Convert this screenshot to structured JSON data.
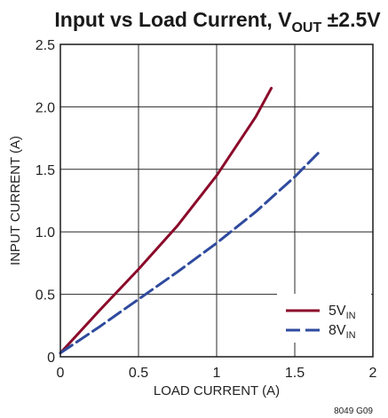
{
  "chart_data": {
    "type": "line",
    "title": {
      "main": "Input vs Load Current, V",
      "sub": "OUT",
      "tail": " ±2.5V"
    },
    "xlabel": "LOAD CURRENT (A)",
    "ylabel": "INPUT CURRENT (A)",
    "xlim": [
      0,
      2
    ],
    "ylim": [
      0,
      2.5
    ],
    "x_ticks": [
      "0",
      "0.5",
      "1",
      "1.5",
      "2"
    ],
    "y_ticks": [
      "0",
      "0.5",
      "1.0",
      "1.5",
      "2.0",
      "2.5"
    ],
    "grid": true,
    "legend_position": "bottom-right",
    "series": [
      {
        "name": "5V",
        "name_sub": "IN",
        "color": "#8b0a2a",
        "dash": "solid",
        "x": [
          0,
          0.25,
          0.5,
          0.75,
          1.0,
          1.25,
          1.35
        ],
        "y": [
          0.03,
          0.37,
          0.7,
          1.05,
          1.45,
          1.92,
          2.15
        ]
      },
      {
        "name": "8V",
        "name_sub": "IN",
        "color": "#2f4a9e",
        "dash": "dashed",
        "x": [
          0,
          0.25,
          0.5,
          0.75,
          1.0,
          1.25,
          1.5,
          1.65
        ],
        "y": [
          0.03,
          0.24,
          0.46,
          0.68,
          0.91,
          1.16,
          1.44,
          1.63
        ]
      }
    ],
    "figure_id": "8049 G09"
  }
}
